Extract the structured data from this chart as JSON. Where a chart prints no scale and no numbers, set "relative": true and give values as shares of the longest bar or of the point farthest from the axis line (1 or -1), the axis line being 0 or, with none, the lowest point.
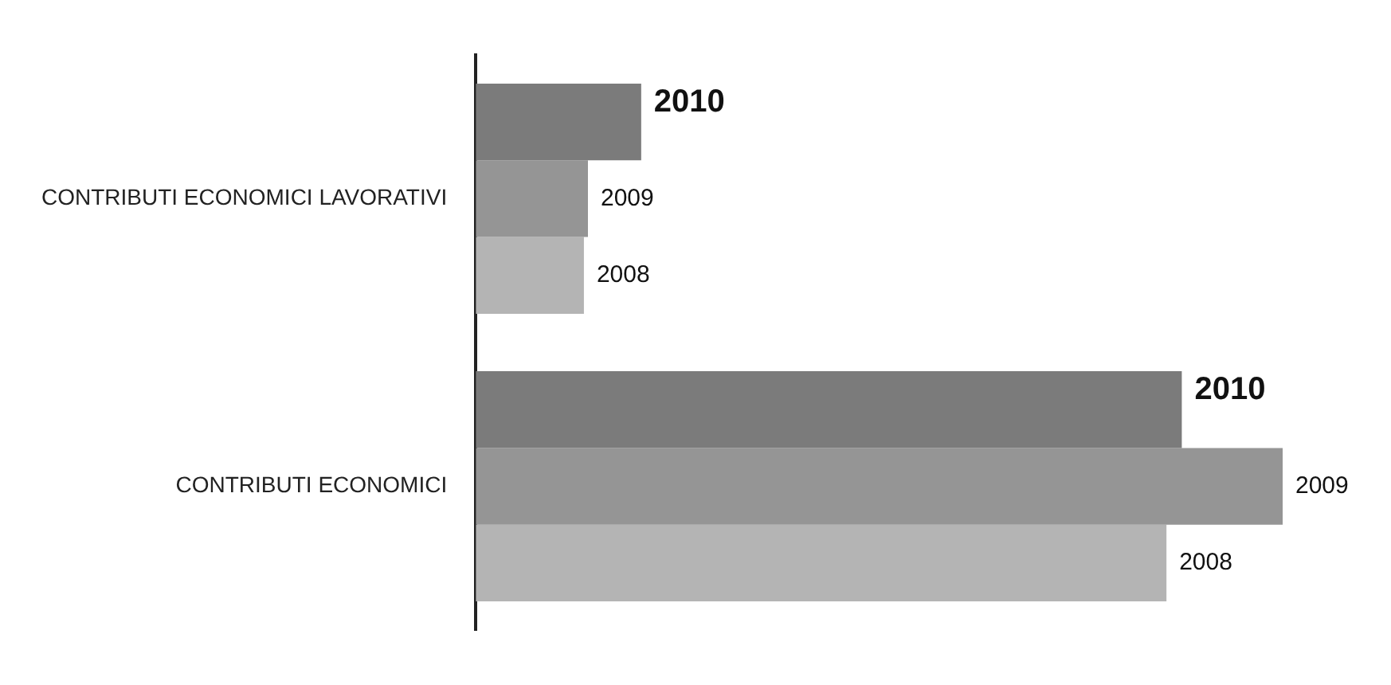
{
  "chart_data": {
    "type": "bar",
    "orientation": "horizontal",
    "relative": true,
    "categories": [
      "CONTRIBUTI ECONOMICI LAVORATIVI",
      "CONTRIBUTI ECONOMICI"
    ],
    "series": [
      {
        "name": "2010",
        "color": "#7b7b7b",
        "values": [
          0.205,
          0.875
        ]
      },
      {
        "name": "2009",
        "color": "#959595",
        "values": [
          0.139,
          1
        ]
      },
      {
        "name": "2008",
        "color": "#b4b4b4",
        "values": [
          0.134,
          0.856
        ]
      }
    ],
    "legend": false
  }
}
